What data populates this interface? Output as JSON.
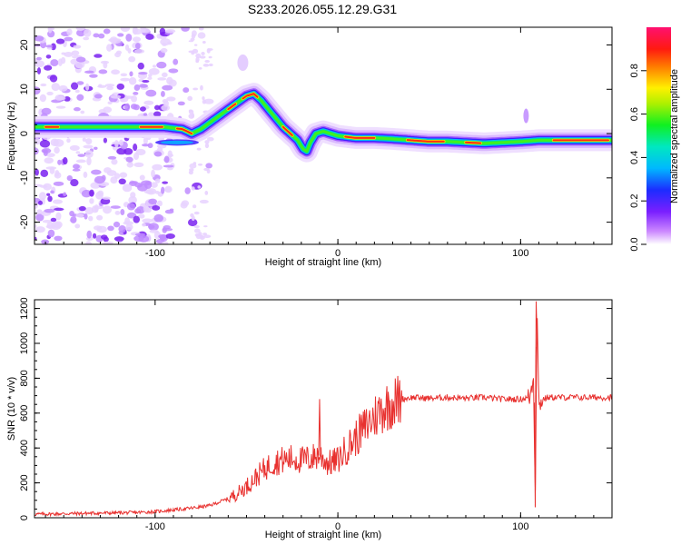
{
  "title": "S233.2026.055.12.29.G31",
  "chart_data": [
    {
      "type": "heatmap",
      "xlabel": "Height of straight line (km)",
      "ylabel": "Frequency (Hz)",
      "xlim": [
        -166,
        150
      ],
      "ylim": [
        -25,
        24
      ],
      "xticks": [
        -100,
        0,
        100
      ],
      "yticks": [
        20,
        10,
        0,
        -10,
        -20
      ],
      "colorbar": {
        "label": "Normalized spectral amplitude",
        "range": [
          0,
          1
        ],
        "ticks": [
          "0.0",
          "0.2",
          "0.4",
          "0.6",
          "0.8"
        ]
      },
      "ridge": {
        "x": [
          -166,
          -150,
          -130,
          -110,
          -95,
          -85,
          -80,
          -75,
          -70,
          -65,
          -60,
          -55,
          -50,
          -46,
          -42,
          -38,
          -34,
          -30,
          -26,
          -22,
          -19,
          -17,
          -15,
          -12,
          -8,
          -4,
          0,
          10,
          20,
          30,
          40,
          50,
          60,
          70,
          80,
          90,
          100,
          110,
          120,
          130,
          140,
          150
        ],
        "y": [
          1.5,
          1.5,
          1.5,
          1.5,
          1.5,
          1.0,
          0.0,
          1.0,
          2.5,
          4.0,
          5.5,
          7.0,
          8.5,
          9.0,
          7.5,
          5.5,
          3.5,
          1.5,
          0.0,
          -1.5,
          -3.5,
          -4.0,
          -2.0,
          0.0,
          0.5,
          0.0,
          -0.5,
          -1.0,
          -1.0,
          -1.2,
          -1.5,
          -1.8,
          -1.8,
          -2.0,
          -2.2,
          -2.0,
          -1.8,
          -1.5,
          -1.5,
          -1.5,
          -1.5,
          -1.5
        ]
      }
    },
    {
      "type": "line",
      "xlabel": "Height of straight line (km)",
      "ylabel": "SNR (10 * v/v)",
      "xlim": [
        -166,
        150
      ],
      "ylim": [
        0,
        1250
      ],
      "xticks": [
        -100,
        0,
        100
      ],
      "yticks": [
        0,
        200,
        400,
        600,
        800,
        1000,
        1200
      ],
      "series": [
        {
          "name": "SNR",
          "color": "#e8312f",
          "x": [
            -166,
            -140,
            -110,
            -100,
            -90,
            -80,
            -70,
            -65,
            -60,
            -55,
            -50,
            -45,
            -40,
            -35,
            -30,
            -25,
            -20,
            -15,
            -10,
            -5,
            0,
            5,
            10,
            15,
            20,
            25,
            30,
            35,
            40,
            50,
            60,
            70,
            80,
            90,
            100,
            105,
            107,
            108,
            109,
            110,
            112,
            115,
            120,
            130,
            140,
            150
          ],
          "values": [
            20,
            25,
            30,
            35,
            45,
            55,
            70,
            90,
            110,
            140,
            180,
            230,
            280,
            320,
            330,
            340,
            330,
            340,
            360,
            310,
            330,
            400,
            460,
            520,
            580,
            630,
            660,
            680,
            690,
            685,
            690,
            685,
            690,
            680,
            680,
            690,
            800,
            100,
            1200,
            650,
            680,
            690,
            690,
            690,
            690,
            690
          ]
        }
      ],
      "annotations": [
        {
          "x": -10,
          "value": 680,
          "label": "spike"
        },
        {
          "x": 108,
          "value": 60,
          "label": "dip"
        },
        {
          "x": 108.5,
          "value": 1240,
          "label": "peak"
        }
      ]
    }
  ]
}
